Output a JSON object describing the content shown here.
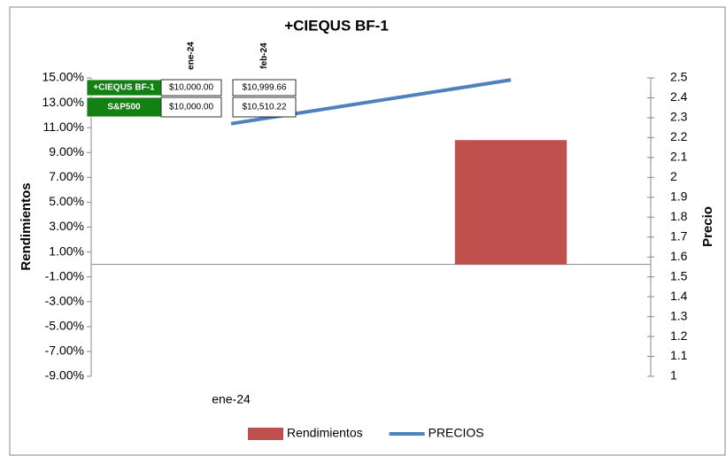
{
  "chart_data": {
    "type": "bar_line",
    "title": "+CIEQUS BF-1",
    "y_label": "Rendimientos",
    "y2_label": "Precio",
    "categories": [
      "ene-24",
      null
    ],
    "series": [
      {
        "name": "Rendimientos",
        "type": "bar",
        "color": "#c0504d",
        "values": [
          null,
          10.0
        ]
      },
      {
        "name": "PRECIOS",
        "type": "line",
        "axis": "y2",
        "color": "#4f81bd",
        "values": [
          2.27,
          2.49
        ]
      }
    ],
    "ylim": [
      -9,
      15
    ],
    "yticks": [
      {
        "value": 15,
        "label": "15.00%"
      },
      {
        "value": 13,
        "label": "13.00%"
      },
      {
        "value": 11,
        "label": "11.00%"
      },
      {
        "value": 9,
        "label": "9.00%"
      },
      {
        "value": 7,
        "label": "7.00%"
      },
      {
        "value": 5,
        "label": "5.00%"
      },
      {
        "value": 3,
        "label": "3.00%"
      },
      {
        "value": 1,
        "label": "1.00%"
      },
      {
        "value": -1,
        "label": "-1.00%"
      },
      {
        "value": -3,
        "label": "-3.00%"
      },
      {
        "value": -5,
        "label": "-5.00%"
      },
      {
        "value": -7,
        "label": "-7.00%"
      },
      {
        "value": -9,
        "label": "-9.00%"
      }
    ],
    "y2lim": [
      1,
      2.5
    ],
    "y2ticks": [
      2.5,
      2.4,
      2.3,
      2.2,
      2.1,
      2,
      1.9,
      1.8,
      1.7,
      1.6,
      1.5,
      1.4,
      1.3,
      1.2,
      1.1,
      1
    ],
    "legend": "bottom"
  },
  "table": {
    "columns": [
      "ene-24",
      "feb-24"
    ],
    "rows": [
      [
        "+CIEQUS BF-1",
        "$10,000.00",
        "$10,999.66"
      ],
      [
        "S&P500",
        "$10,000.00",
        "$10,510.22"
      ]
    ]
  }
}
